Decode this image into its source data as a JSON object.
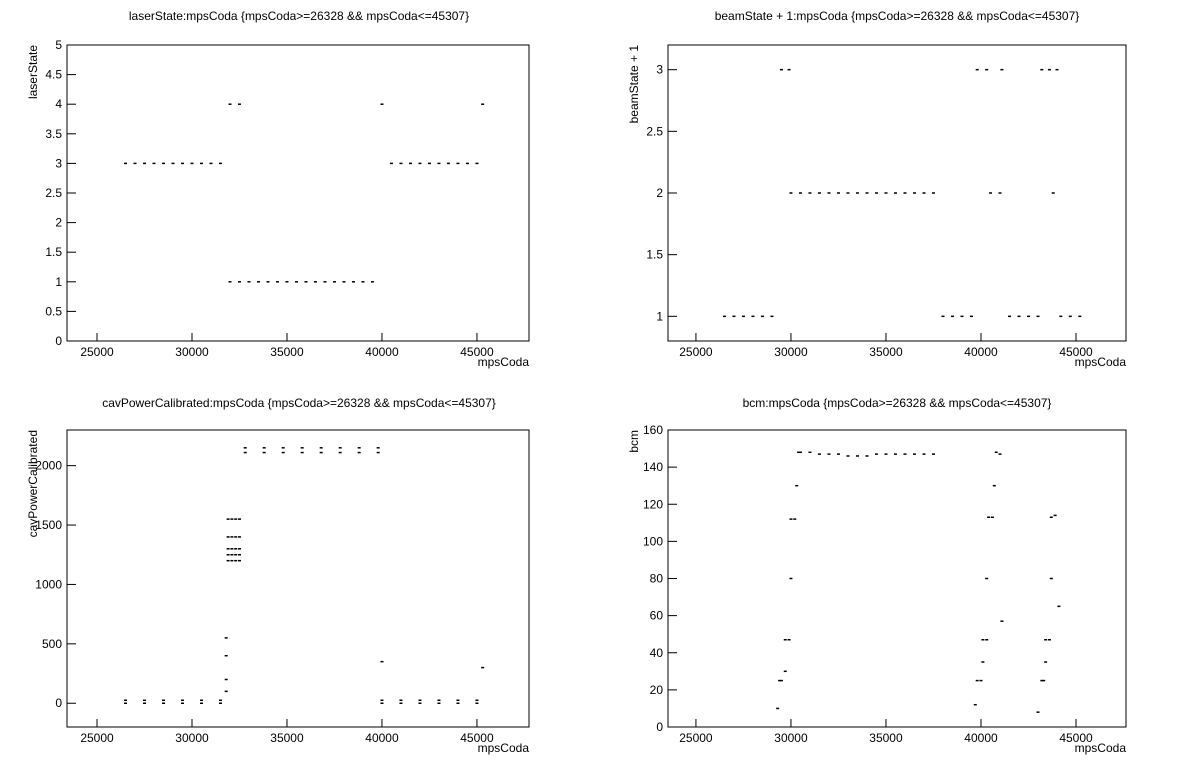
{
  "chart_data": [
    {
      "type": "scatter",
      "title": "laserState:mpsCoda {mpsCoda>=26328 && mpsCoda<=45307}",
      "x_label": "mpsCoda",
      "y_label": "laserState",
      "color": "#000000",
      "xlim": [
        23420,
        47740
      ],
      "ylim": [
        0,
        5
      ],
      "xticks": [
        25000,
        30000,
        35000,
        40000,
        45000
      ],
      "yticks": [
        0,
        0.5,
        1,
        1.5,
        2,
        2.5,
        3,
        3.5,
        4,
        4.5,
        5
      ],
      "x": [
        26500,
        27000,
        27500,
        28000,
        28500,
        29000,
        29500,
        30000,
        30500,
        31000,
        31500,
        32000,
        32500,
        32000,
        32500,
        33000,
        33500,
        34000,
        34500,
        35000,
        35500,
        36000,
        36500,
        37000,
        37500,
        38000,
        38500,
        39000,
        39500,
        40000,
        45300,
        40500,
        41000,
        41500,
        42000,
        42500,
        43000,
        43500,
        44000,
        44500,
        45000
      ],
      "values": [
        3,
        3,
        3,
        3,
        3,
        3,
        3,
        3,
        3,
        3,
        3,
        4,
        4,
        1,
        1,
        1,
        1,
        1,
        1,
        1,
        1,
        1,
        1,
        1,
        1,
        1,
        1,
        1,
        1,
        4,
        4,
        3,
        3,
        3,
        3,
        3,
        3,
        3,
        3,
        3,
        3
      ]
    },
    {
      "type": "scatter",
      "title": "beamState + 1:mpsCoda {mpsCoda>=26328 && mpsCoda<=45307}",
      "x_label": "mpsCoda",
      "y_label": "beamState + 1",
      "color": "#000000",
      "xlim": [
        23530,
        47630
      ],
      "ylim": [
        0.8,
        3.2
      ],
      "xticks": [
        25000,
        30000,
        35000,
        40000,
        45000
      ],
      "yticks": [
        1,
        1.5,
        2,
        2.5,
        3
      ],
      "x": [
        26500,
        27000,
        27500,
        28000,
        28500,
        29000,
        29500,
        29900,
        30000,
        30500,
        31000,
        31500,
        32000,
        32500,
        33000,
        33500,
        34000,
        34500,
        35000,
        35500,
        36000,
        36500,
        37000,
        37500,
        38000,
        38500,
        39000,
        39500,
        39800,
        40300,
        40500,
        41000,
        41100,
        41500,
        42000,
        42500,
        43000,
        43200,
        43600,
        44000,
        43800,
        44200,
        44700,
        45200
      ],
      "values": [
        1,
        1,
        1,
        1,
        1,
        1,
        3,
        3,
        2,
        2,
        2,
        2,
        2,
        2,
        2,
        2,
        2,
        2,
        2,
        2,
        2,
        2,
        2,
        2,
        1,
        1,
        1,
        1,
        3,
        3,
        2,
        2,
        3,
        1,
        1,
        1,
        1,
        3,
        3,
        3,
        2,
        1,
        1,
        1
      ]
    },
    {
      "type": "scatter",
      "title": "cavPowerCalibrated:mpsCoda {mpsCoda>=26328 && mpsCoda<=45307}",
      "x_label": "mpsCoda",
      "y_label": "cavPowerCalibrated",
      "color": "#000000",
      "xlim": [
        23420,
        47740
      ],
      "ylim": [
        -200,
        2300
      ],
      "xticks": [
        25000,
        30000,
        35000,
        40000,
        45000
      ],
      "yticks": [
        0,
        500,
        1000,
        1500,
        2000
      ],
      "x": [
        26500,
        26500,
        27500,
        27500,
        28500,
        28500,
        29500,
        29500,
        30500,
        30500,
        31500,
        31500,
        31800,
        31800,
        31800,
        31800,
        31900,
        31900,
        31900,
        31900,
        31900,
        32100,
        32100,
        32100,
        32100,
        32100,
        32300,
        32300,
        32300,
        32300,
        32300,
        32500,
        32500,
        32500,
        32500,
        32500,
        32800,
        32800,
        33800,
        33800,
        34800,
        34800,
        35800,
        35800,
        36800,
        36800,
        37800,
        37800,
        38800,
        38800,
        39800,
        39800,
        40000,
        40000,
        41000,
        41000,
        42000,
        42000,
        43000,
        43000,
        44000,
        44000,
        45000,
        45000,
        40000,
        45300
      ],
      "values": [
        25,
        0,
        25,
        0,
        25,
        0,
        25,
        0,
        25,
        0,
        25,
        0,
        550,
        400,
        200,
        100,
        1550,
        1400,
        1300,
        1250,
        1200,
        1550,
        1400,
        1300,
        1250,
        1200,
        1550,
        1400,
        1300,
        1250,
        1200,
        1550,
        1400,
        1300,
        1250,
        1200,
        2150,
        2110,
        2150,
        2110,
        2150,
        2110,
        2150,
        2110,
        2150,
        2110,
        2150,
        2110,
        2150,
        2110,
        2150,
        2110,
        25,
        0,
        25,
        0,
        25,
        0,
        25,
        0,
        25,
        0,
        25,
        0,
        350,
        300
      ]
    },
    {
      "type": "scatter",
      "title": "bcm:mpsCoda {mpsCoda>=26328 && mpsCoda<=45307}",
      "x_label": "mpsCoda",
      "y_label": "bcm",
      "color": "#000000",
      "xlim": [
        23530,
        47630
      ],
      "ylim": [
        0,
        160
      ],
      "xticks": [
        25000,
        30000,
        35000,
        40000,
        45000
      ],
      "yticks": [
        0,
        20,
        40,
        60,
        80,
        100,
        120,
        140,
        160
      ],
      "x": [
        29300,
        29400,
        29500,
        29700,
        29700,
        29900,
        30000,
        30000,
        30200,
        30300,
        30400,
        30500,
        31000,
        31500,
        32000,
        32500,
        33000,
        33500,
        34000,
        34500,
        35000,
        35500,
        36000,
        36500,
        37000,
        37500,
        39700,
        39800,
        40000,
        40100,
        40100,
        40300,
        40300,
        40400,
        40600,
        40700,
        40800,
        41000,
        41100,
        43000,
        43200,
        43300,
        43400,
        43400,
        43600,
        43700,
        43700,
        43900,
        44100
      ],
      "values": [
        10,
        25,
        25,
        30,
        47,
        47,
        80,
        112,
        112,
        130,
        148,
        148,
        148,
        147,
        147,
        147,
        146,
        146,
        146,
        147,
        147,
        147,
        147,
        147,
        147,
        147,
        12,
        25,
        25,
        35,
        47,
        80,
        47,
        113,
        113,
        130,
        148,
        147,
        57,
        8,
        25,
        25,
        35,
        47,
        47,
        80,
        113,
        114,
        65
      ]
    }
  ]
}
